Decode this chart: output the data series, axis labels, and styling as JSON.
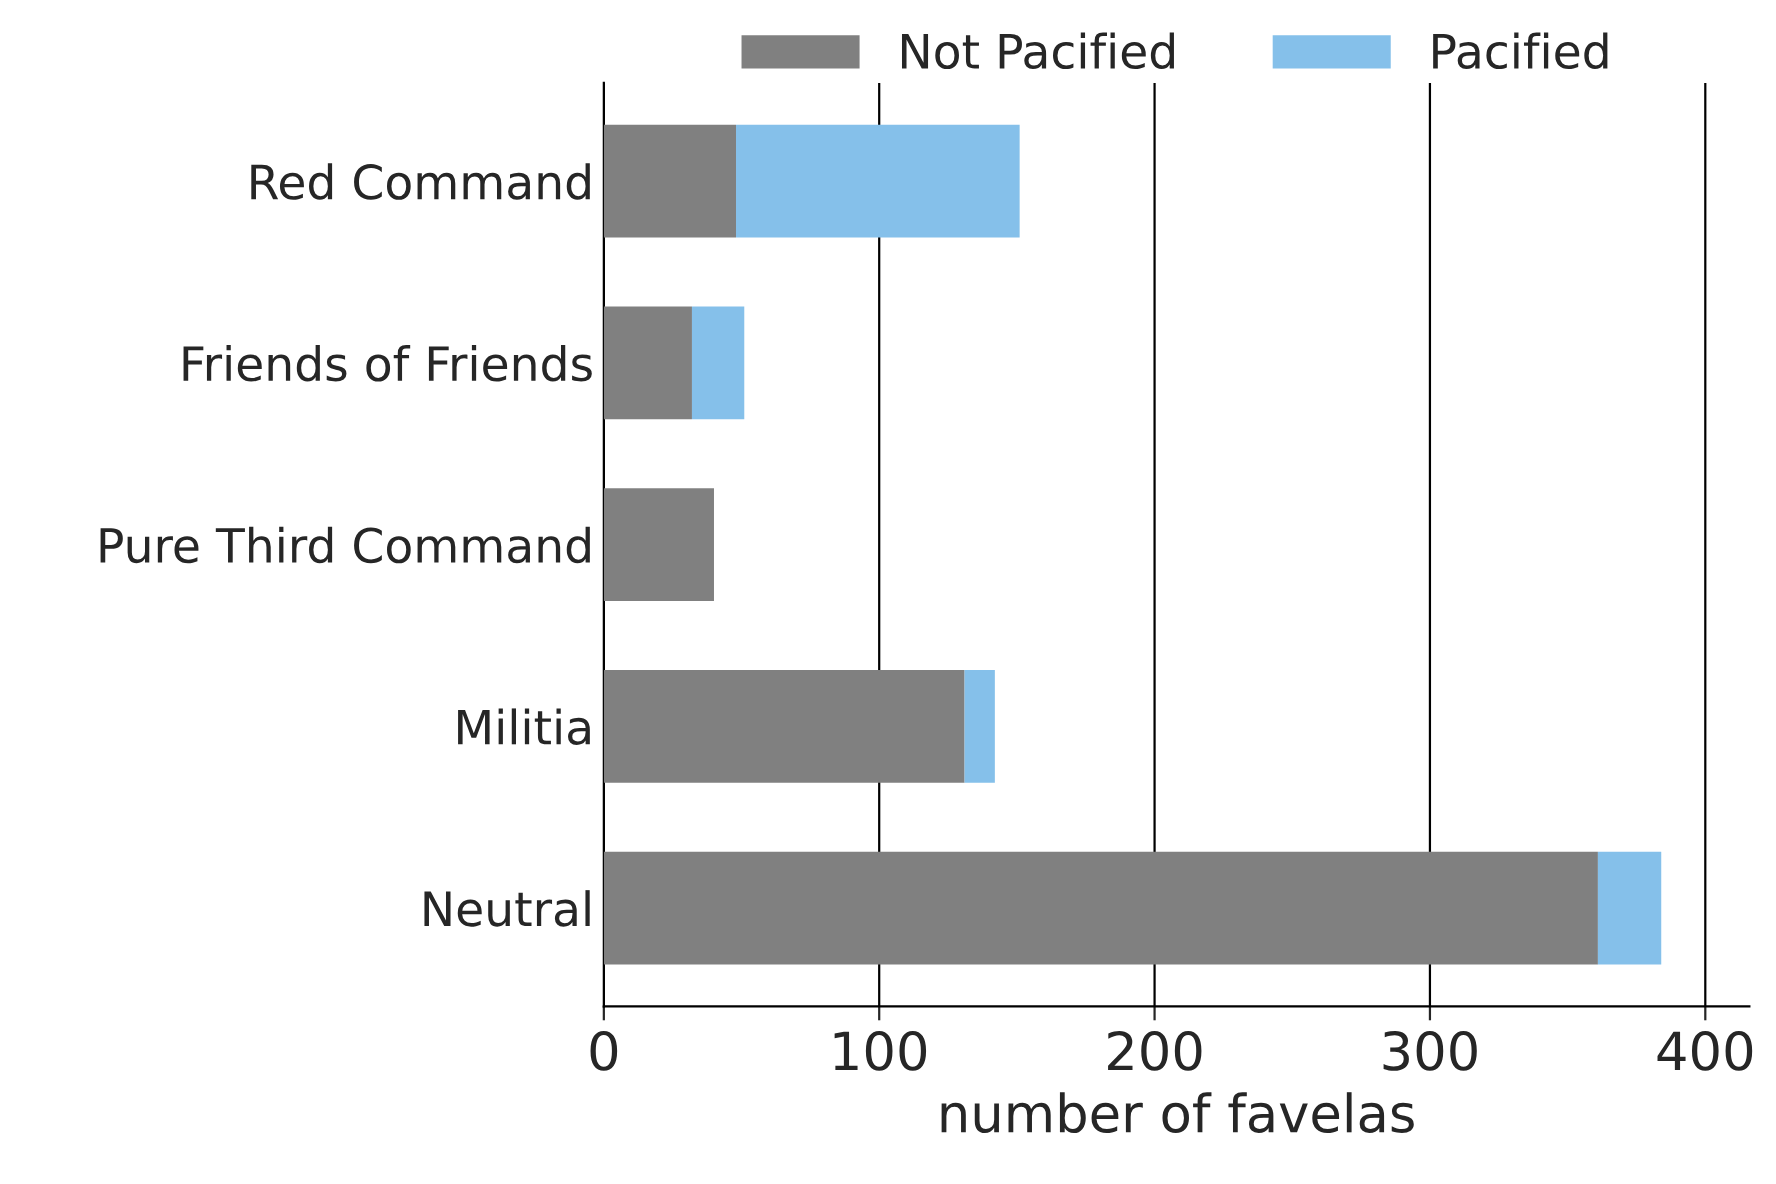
{
  "chart_data": {
    "type": "bar",
    "orientation": "horizontal",
    "stacked": true,
    "xlabel": "number of favelas",
    "categories": [
      "Red Command",
      "Friends of Friends",
      "Pure Third Command",
      "Militia",
      "Neutral"
    ],
    "series": [
      {
        "name": "Not Pacified",
        "color": "#808080",
        "values": [
          48,
          32,
          40,
          131,
          361
        ]
      },
      {
        "name": "Pacified",
        "color": "#85c0ea",
        "values": [
          103,
          19,
          null,
          11,
          23
        ]
      }
    ],
    "xlim": [
      0,
      416
    ],
    "xticks": [
      0,
      100,
      200,
      300,
      400
    ],
    "grid": "x",
    "legend": "top"
  }
}
